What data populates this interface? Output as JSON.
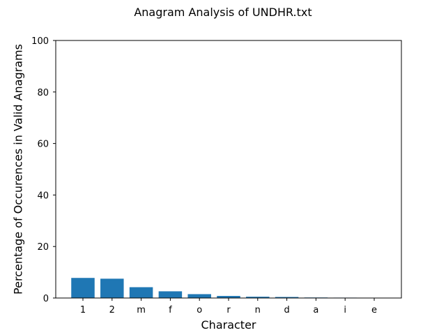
{
  "chart_data": {
    "type": "bar",
    "title": "Anagram Analysis of UNDHR.txt",
    "xlabel": "Character",
    "ylabel": "Percentage of Occurences in Valid Anagrams",
    "categories": [
      "1",
      "2",
      "m",
      "f",
      "o",
      "r",
      "n",
      "d",
      "a",
      "i",
      "e"
    ],
    "values": [
      7.8,
      7.5,
      4.2,
      2.6,
      1.5,
      0.8,
      0.5,
      0.4,
      0.2,
      0.15,
      0.1
    ],
    "ylim": [
      0,
      100
    ],
    "yticks": [
      0,
      20,
      40,
      60,
      80,
      100
    ],
    "grid": false,
    "bar_color": "#1f77b4"
  }
}
